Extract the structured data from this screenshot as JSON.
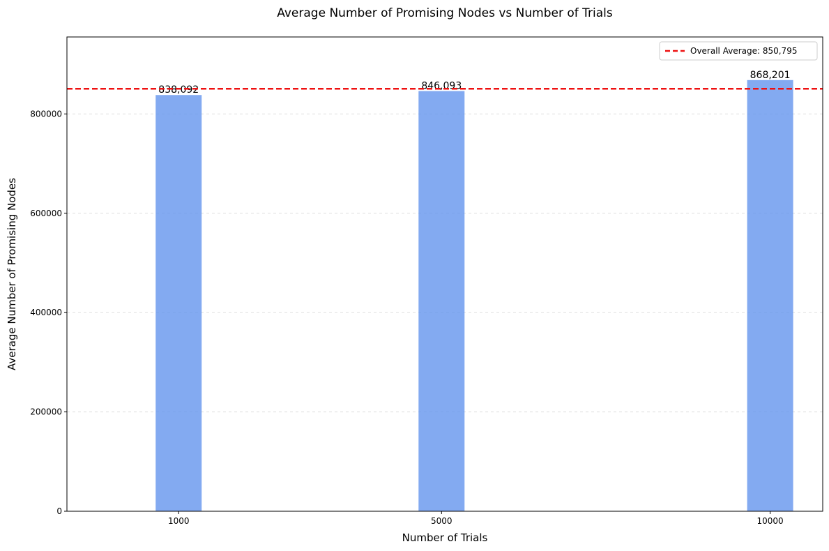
{
  "chart_data": {
    "type": "bar",
    "title": "Average Number of Promising Nodes vs Number of Trials",
    "xlabel": "Number of Trials",
    "ylabel": "Average Number of Promising Nodes",
    "x": [
      1000,
      5000,
      10000
    ],
    "categories": [
      "1000",
      "5000",
      "10000"
    ],
    "values": [
      838092,
      846093,
      868201
    ],
    "data_labels": [
      "838,092",
      "846,093",
      "868,201"
    ],
    "bar_color": "#6495ED",
    "xlim": [
      -700,
      10800
    ],
    "ylim": [
      0,
      955000
    ],
    "yticks": [
      0,
      200000,
      400000,
      600000,
      800000
    ],
    "ytick_labels": [
      "0",
      "200000",
      "400000",
      "600000",
      "800000"
    ],
    "grid": "y-dashed",
    "reference_line": {
      "value": 850795,
      "label": "Overall Average: 850,795",
      "color": "#EE1111",
      "style": "dashed"
    },
    "legend": {
      "position": "top-right"
    }
  }
}
